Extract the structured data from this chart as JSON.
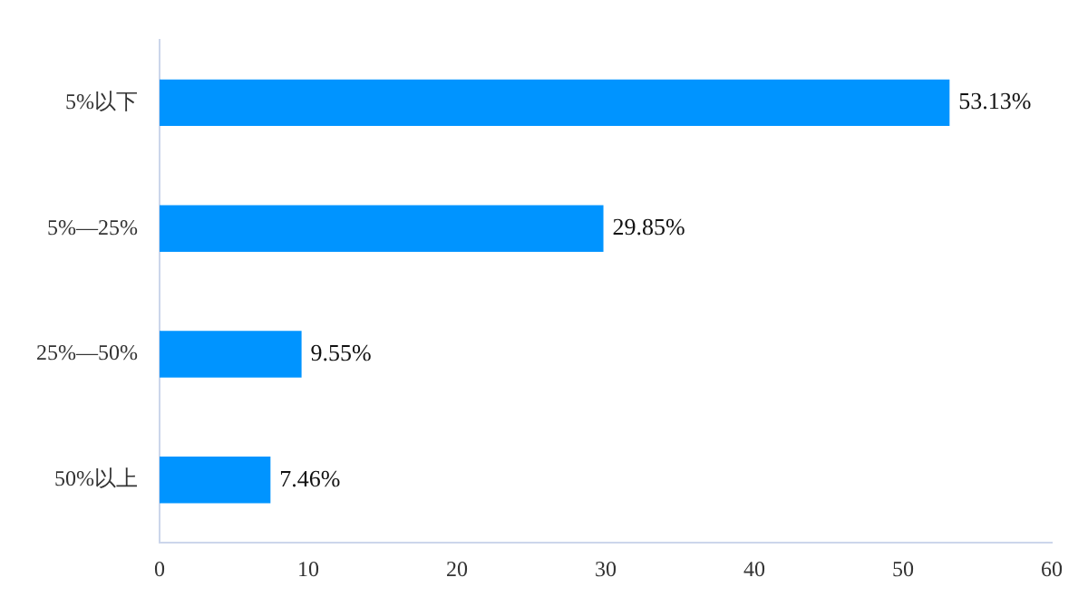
{
  "chart_data": {
    "type": "bar",
    "orientation": "horizontal",
    "categories": [
      "5%以下",
      "5%—25%",
      "25%—50%",
      "50%以上"
    ],
    "values": [
      53.13,
      29.85,
      9.55,
      7.46
    ],
    "value_labels": [
      "53.13%",
      "29.85%",
      "9.55%",
      "7.46%"
    ],
    "color": "#0094ff",
    "xlim": [
      0,
      60
    ],
    "xticks": [
      0,
      10,
      20,
      30,
      40,
      50,
      60
    ],
    "grid": false,
    "legend": false
  }
}
